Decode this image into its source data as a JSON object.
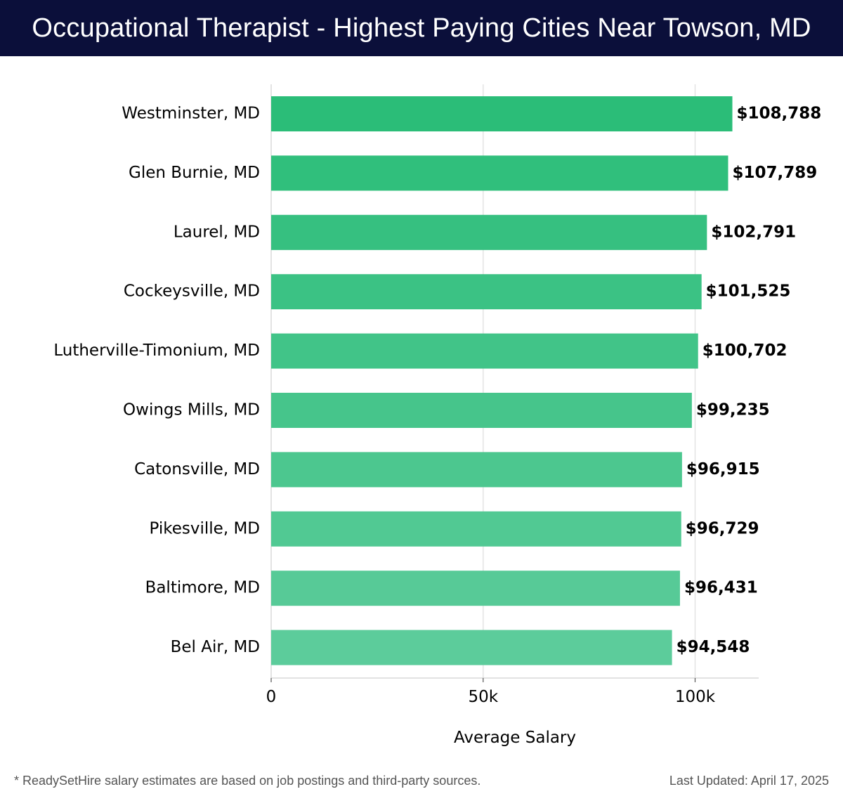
{
  "header": {
    "title": "Occupational Therapist - Highest Paying Cities Near Towson, MD"
  },
  "colors": {
    "header_bg": "#0b0f3a",
    "bar_dark": "#2bbd78",
    "bar_light": "#5ccc9b",
    "grid": "#e3e3e3",
    "text": "#000000"
  },
  "chart_data": {
    "type": "bar",
    "orientation": "horizontal",
    "title": "Occupational Therapist - Highest Paying Cities Near Towson, MD",
    "categories": [
      "Westminster, MD",
      "Glen Burnie, MD",
      "Laurel, MD",
      "Cockeysville, MD",
      "Lutherville-Timonium, MD",
      "Owings Mills, MD",
      "Catonsville, MD",
      "Pikesville, MD",
      "Baltimore, MD",
      "Bel Air, MD"
    ],
    "values": [
      108788,
      107789,
      102791,
      101525,
      100702,
      99235,
      96915,
      96729,
      96431,
      94548
    ],
    "value_labels": [
      "$108,788",
      "$107,789",
      "$102,791",
      "$101,525",
      "$100,702",
      "$99,235",
      "$96,915",
      "$96,729",
      "$96,431",
      "$94,548"
    ],
    "xlabel": "Average Salary",
    "ylabel": "",
    "xlim": [
      0,
      115000
    ],
    "xticks": [
      0,
      50000,
      100000
    ],
    "xtick_labels": [
      "0",
      "50k",
      "100k"
    ],
    "grid": true,
    "legend": "none"
  },
  "footer": {
    "note": "* ReadySetHire salary estimates are based on job postings and third-party sources.",
    "updated": "Last Updated: April 17, 2025"
  }
}
